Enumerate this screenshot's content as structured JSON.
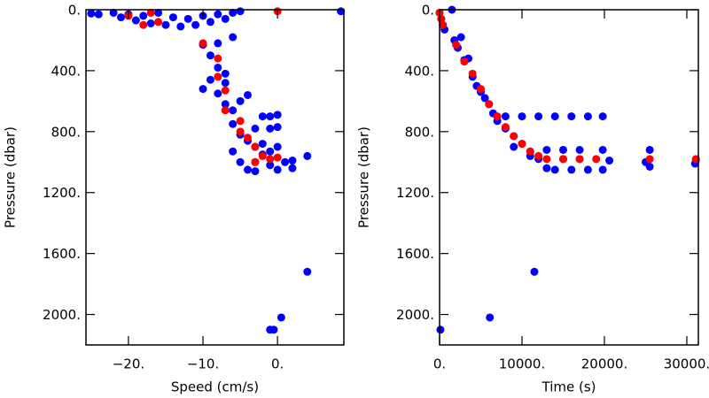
{
  "chart_data": [
    {
      "type": "scatter",
      "x_label": "Speed (cm/s)",
      "y_label": "Pressure (dbar)",
      "xlim": [
        -25.7,
        8.9
      ],
      "ylim": [
        2200,
        0
      ],
      "xticks": [
        {
          "value": -20,
          "label": "−20."
        },
        {
          "value": -10,
          "label": "−10."
        },
        {
          "value": 0,
          "label": "0."
        }
      ],
      "yticks": [
        {
          "value": 0,
          "label": "0."
        },
        {
          "value": 400,
          "label": "400."
        },
        {
          "value": 800,
          "label": "800."
        },
        {
          "value": 1200,
          "label": "1200."
        },
        {
          "value": 1600,
          "label": "1600."
        },
        {
          "value": 2000,
          "label": "2000."
        }
      ],
      "series": [
        {
          "color": "#0000ff",
          "x": [
            -25,
            -22,
            -20,
            -18,
            -16,
            -14,
            -12,
            -10,
            -8,
            -6,
            -19,
            -17,
            -15,
            -13,
            -11,
            -9,
            -21,
            -24,
            -5,
            8.5,
            -7,
            -10,
            -8,
            -6,
            -9,
            -8,
            -7,
            -9,
            -8,
            -7,
            -6,
            -5,
            -4,
            -6,
            -5,
            -4,
            -3,
            -2,
            0,
            -1,
            0,
            -1,
            -6,
            -5,
            -4,
            -3,
            -2,
            -1,
            0,
            1,
            2,
            4,
            -3,
            -2,
            -1,
            0,
            2,
            4,
            0.5,
            -0.5,
            -1,
            -10,
            -7,
            -3
          ],
          "y": [
            25,
            20,
            30,
            40,
            20,
            50,
            60,
            40,
            30,
            20,
            70,
            90,
            100,
            110,
            100,
            80,
            50,
            30,
            10,
            10,
            60,
            230,
            220,
            180,
            300,
            380,
            420,
            460,
            550,
            620,
            660,
            600,
            560,
            750,
            820,
            860,
            780,
            700,
            690,
            700,
            770,
            780,
            930,
            1000,
            1050,
            1000,
            950,
            1020,
            1050,
            1000,
            990,
            960,
            900,
            880,
            930,
            900,
            1040,
            1720,
            2020,
            2100,
            2100,
            520,
            480,
            1060
          ]
        },
        {
          "color": "#ff0000",
          "x": [
            -20,
            -17,
            -16,
            -18,
            0,
            -10,
            -8,
            -8,
            -7,
            -7,
            -5,
            -5,
            -4,
            -3,
            -2,
            -1,
            0,
            -3
          ],
          "y": [
            40,
            20,
            80,
            100,
            10,
            220,
            320,
            440,
            530,
            660,
            730,
            800,
            840,
            900,
            960,
            980,
            970,
            1000
          ]
        }
      ]
    },
    {
      "type": "scatter",
      "x_label": "Time (s)",
      "y_label": "Pressure (dbar)",
      "xlim": [
        0,
        31400
      ],
      "ylim": [
        2200,
        0
      ],
      "xticks": [
        {
          "value": 0,
          "label": "0."
        },
        {
          "value": 10000,
          "label": "10000."
        },
        {
          "value": 20000,
          "label": "20000."
        },
        {
          "value": 30000,
          "label": "30000."
        }
      ],
      "yticks": [
        {
          "value": 0,
          "label": "0."
        },
        {
          "value": 400,
          "label": "400."
        },
        {
          "value": 800,
          "label": "800."
        },
        {
          "value": 1200,
          "label": "1200."
        },
        {
          "value": 1600,
          "label": "1600."
        },
        {
          "value": 2000,
          "label": "2000."
        }
      ],
      "series": [
        {
          "color": "#0000ff",
          "x": [
            0,
            200,
            400,
            600,
            1500,
            1800,
            2200,
            2600,
            3000,
            3500,
            4000,
            4500,
            5000,
            5500,
            6000,
            6500,
            7000,
            8000,
            9000,
            10000,
            11000,
            12000,
            13000,
            14000,
            16000,
            18000,
            19800,
            8000,
            10000,
            12000,
            14000,
            16000,
            18000,
            19800,
            9000,
            11000,
            13000,
            15000,
            17000,
            19800,
            15000,
            17000,
            20600,
            25500,
            25500,
            25000,
            31100,
            31000,
            11500,
            6100,
            100
          ],
          "y": [
            20,
            60,
            100,
            130,
            0,
            200,
            250,
            180,
            330,
            320,
            440,
            500,
            540,
            580,
            620,
            680,
            730,
            780,
            830,
            880,
            930,
            980,
            1040,
            1050,
            1050,
            1050,
            1050,
            700,
            700,
            700,
            700,
            700,
            700,
            700,
            900,
            960,
            920,
            920,
            920,
            920,
            980,
            980,
            990,
            920,
            1030,
            1000,
            990,
            1010,
            1720,
            2020,
            2100
          ]
        },
        {
          "color": "#ff0000",
          "x": [
            0,
            200,
            400,
            2000,
            3000,
            4000,
            5000,
            6000,
            7000,
            8000,
            9000,
            10000,
            11000,
            12000,
            13000,
            15000,
            17000,
            19000,
            25500,
            31100
          ],
          "y": [
            20,
            60,
            100,
            230,
            340,
            420,
            520,
            620,
            700,
            770,
            830,
            880,
            930,
            960,
            980,
            980,
            980,
            980,
            980,
            980
          ]
        }
      ]
    }
  ]
}
